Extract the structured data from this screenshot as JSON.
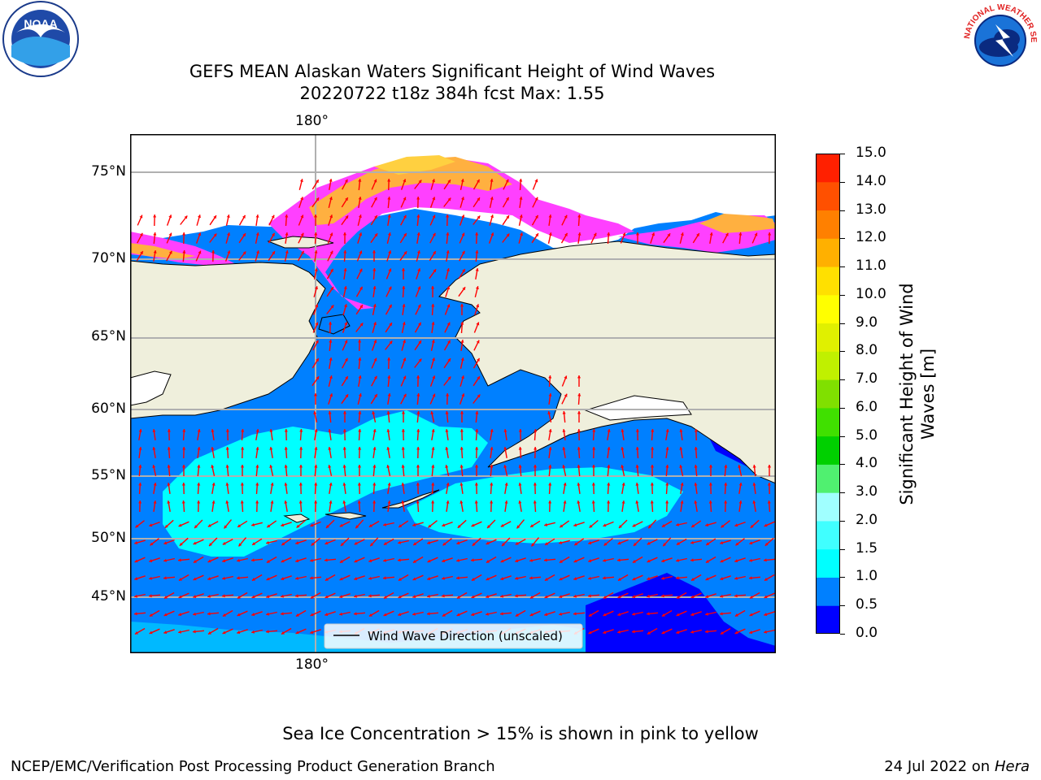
{
  "title_line1": "GEFS MEAN Alaskan Waters Significant Height of Wind Waves",
  "title_line2": "20220722 t18z 384h fcst   Max: 1.55",
  "logos": {
    "left": {
      "name": "noaa-logo",
      "text": "NOAA"
    },
    "right": {
      "name": "nws-logo",
      "text": "NATIONAL WEATHER SERVICE"
    }
  },
  "map": {
    "lon_label_top": "180°",
    "lon_label_bottom": "180°",
    "lat_labels": [
      "75°N",
      "70°N",
      "65°N",
      "60°N",
      "55°N",
      "50°N",
      "45°N"
    ],
    "legend_label": "Wind Wave Direction (unscaled)",
    "colors": {
      "land": "#efefdc",
      "ocean_deep": "#0000ff",
      "ocean_low": "#0080ff",
      "ocean_mid": "#00ffff",
      "ocean_mid2": "#40ffff",
      "ice_pink": "#ff40ff",
      "ice_orange": "#ffb040",
      "ice_yellow": "#ffd040",
      "arrow": "#ff0000"
    }
  },
  "colorbar": {
    "title_line1": "Significant Height of Wind",
    "title_line2": "Waves [m]",
    "tick_labels": [
      "0.0",
      "0.5",
      "1.0",
      "1.5",
      "2.0",
      "3.0",
      "4.0",
      "5.0",
      "6.0",
      "7.0",
      "8.0",
      "9.0",
      "10.0",
      "11.0",
      "12.0",
      "13.0",
      "14.0",
      "15.0"
    ],
    "colors": [
      "#0000ff",
      "#0080ff",
      "#00ffff",
      "#40ffff",
      "#a0ffff",
      "#50f070",
      "#00d000",
      "#40e000",
      "#80e000",
      "#c0f000",
      "#e0f000",
      "#ffff00",
      "#ffe000",
      "#ffb000",
      "#ff8000",
      "#ff5000",
      "#ff2000",
      "#ff0000"
    ]
  },
  "sea_ice_note": "Sea Ice Concentration > 15% is shown in pink to yellow",
  "footer_left": "NCEP/EMC/Verification Post Processing Product Generation Branch",
  "footer_right_date": "24 Jul 2022 on",
  "footer_right_host": "Hera"
}
